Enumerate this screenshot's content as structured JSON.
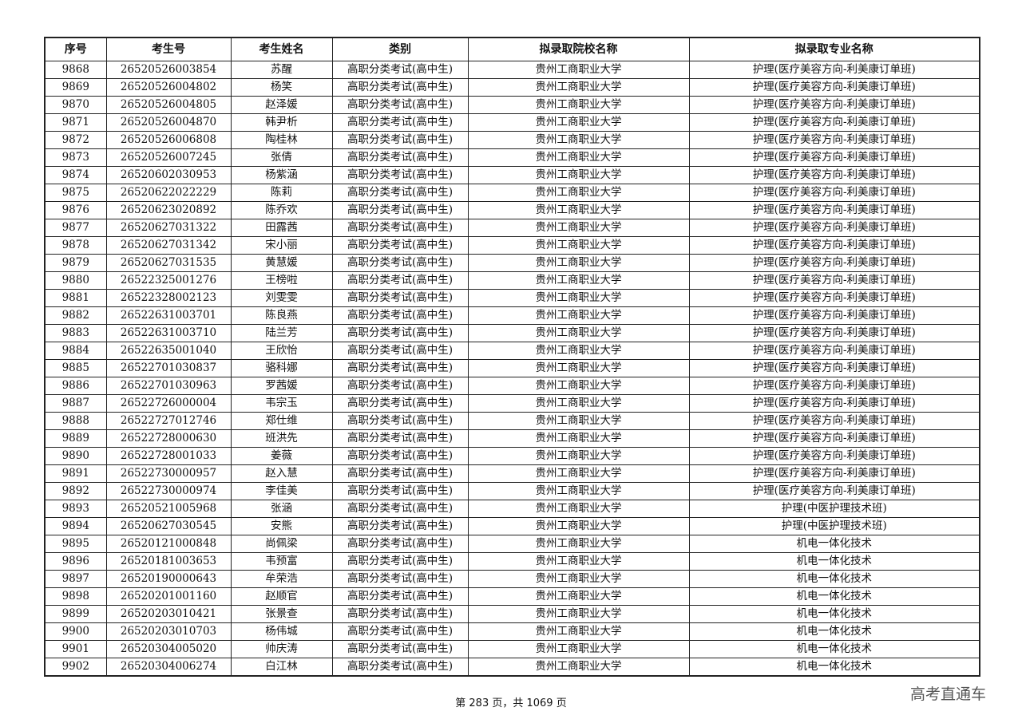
{
  "table": {
    "headers": [
      "序号",
      "考生号",
      "考生姓名",
      "类别",
      "拟录取院校名称",
      "拟录取专业名称"
    ],
    "rows": [
      [
        "9868",
        "26520526003854",
        "苏醒",
        "高职分类考试(高中生)",
        "贵州工商职业大学",
        "护理(医疗美容方向-利美康订单班)"
      ],
      [
        "9869",
        "26520526004802",
        "杨笑",
        "高职分类考试(高中生)",
        "贵州工商职业大学",
        "护理(医疗美容方向-利美康订单班)"
      ],
      [
        "9870",
        "26520526004805",
        "赵泽媛",
        "高职分类考试(高中生)",
        "贵州工商职业大学",
        "护理(医疗美容方向-利美康订单班)"
      ],
      [
        "9871",
        "26520526004870",
        "韩尹析",
        "高职分类考试(高中生)",
        "贵州工商职业大学",
        "护理(医疗美容方向-利美康订单班)"
      ],
      [
        "9872",
        "26520526006808",
        "陶桂林",
        "高职分类考试(高中生)",
        "贵州工商职业大学",
        "护理(医疗美容方向-利美康订单班)"
      ],
      [
        "9873",
        "26520526007245",
        "张倩",
        "高职分类考试(高中生)",
        "贵州工商职业大学",
        "护理(医疗美容方向-利美康订单班)"
      ],
      [
        "9874",
        "26520602030953",
        "杨紫涵",
        "高职分类考试(高中生)",
        "贵州工商职业大学",
        "护理(医疗美容方向-利美康订单班)"
      ],
      [
        "9875",
        "26520622022229",
        "陈莉",
        "高职分类考试(高中生)",
        "贵州工商职业大学",
        "护理(医疗美容方向-利美康订单班)"
      ],
      [
        "9876",
        "26520623020892",
        "陈乔欢",
        "高职分类考试(高中生)",
        "贵州工商职业大学",
        "护理(医疗美容方向-利美康订单班)"
      ],
      [
        "9877",
        "26520627031322",
        "田露茜",
        "高职分类考试(高中生)",
        "贵州工商职业大学",
        "护理(医疗美容方向-利美康订单班)"
      ],
      [
        "9878",
        "26520627031342",
        "宋小丽",
        "高职分类考试(高中生)",
        "贵州工商职业大学",
        "护理(医疗美容方向-利美康订单班)"
      ],
      [
        "9879",
        "26520627031535",
        "黄慧媛",
        "高职分类考试(高中生)",
        "贵州工商职业大学",
        "护理(医疗美容方向-利美康订单班)"
      ],
      [
        "9880",
        "26522325001276",
        "王榜啦",
        "高职分类考试(高中生)",
        "贵州工商职业大学",
        "护理(医疗美容方向-利美康订单班)"
      ],
      [
        "9881",
        "26522328002123",
        "刘雯雯",
        "高职分类考试(高中生)",
        "贵州工商职业大学",
        "护理(医疗美容方向-利美康订单班)"
      ],
      [
        "9882",
        "26522631003701",
        "陈良燕",
        "高职分类考试(高中生)",
        "贵州工商职业大学",
        "护理(医疗美容方向-利美康订单班)"
      ],
      [
        "9883",
        "26522631003710",
        "陆兰芳",
        "高职分类考试(高中生)",
        "贵州工商职业大学",
        "护理(医疗美容方向-利美康订单班)"
      ],
      [
        "9884",
        "26522635001040",
        "王欣怡",
        "高职分类考试(高中生)",
        "贵州工商职业大学",
        "护理(医疗美容方向-利美康订单班)"
      ],
      [
        "9885",
        "26522701030837",
        "骆科娜",
        "高职分类考试(高中生)",
        "贵州工商职业大学",
        "护理(医疗美容方向-利美康订单班)"
      ],
      [
        "9886",
        "26522701030963",
        "罗茜媛",
        "高职分类考试(高中生)",
        "贵州工商职业大学",
        "护理(医疗美容方向-利美康订单班)"
      ],
      [
        "9887",
        "26522726000004",
        "韦宗玉",
        "高职分类考试(高中生)",
        "贵州工商职业大学",
        "护理(医疗美容方向-利美康订单班)"
      ],
      [
        "9888",
        "26522727012746",
        "郑仕维",
        "高职分类考试(高中生)",
        "贵州工商职业大学",
        "护理(医疗美容方向-利美康订单班)"
      ],
      [
        "9889",
        "26522728000630",
        "班洪先",
        "高职分类考试(高中生)",
        "贵州工商职业大学",
        "护理(医疗美容方向-利美康订单班)"
      ],
      [
        "9890",
        "26522728001033",
        "姜薇",
        "高职分类考试(高中生)",
        "贵州工商职业大学",
        "护理(医疗美容方向-利美康订单班)"
      ],
      [
        "9891",
        "26522730000957",
        "赵入慧",
        "高职分类考试(高中生)",
        "贵州工商职业大学",
        "护理(医疗美容方向-利美康订单班)"
      ],
      [
        "9892",
        "26522730000974",
        "李佳美",
        "高职分类考试(高中生)",
        "贵州工商职业大学",
        "护理(医疗美容方向-利美康订单班)"
      ],
      [
        "9893",
        "26520521005968",
        "张涵",
        "高职分类考试(高中生)",
        "贵州工商职业大学",
        "护理(中医护理技术班)"
      ],
      [
        "9894",
        "26520627030545",
        "安熊",
        "高职分类考试(高中生)",
        "贵州工商职业大学",
        "护理(中医护理技术班)"
      ],
      [
        "9895",
        "26520121000848",
        "尚佩梁",
        "高职分类考试(高中生)",
        "贵州工商职业大学",
        "机电一体化技术"
      ],
      [
        "9896",
        "26520181003653",
        "韦预富",
        "高职分类考试(高中生)",
        "贵州工商职业大学",
        "机电一体化技术"
      ],
      [
        "9897",
        "26520190000643",
        "牟荣浩",
        "高职分类考试(高中生)",
        "贵州工商职业大学",
        "机电一体化技术"
      ],
      [
        "9898",
        "26520201001160",
        "赵顺官",
        "高职分类考试(高中生)",
        "贵州工商职业大学",
        "机电一体化技术"
      ],
      [
        "9899",
        "26520203010421",
        "张景查",
        "高职分类考试(高中生)",
        "贵州工商职业大学",
        "机电一体化技术"
      ],
      [
        "9900",
        "26520203010703",
        "杨伟城",
        "高职分类考试(高中生)",
        "贵州工商职业大学",
        "机电一体化技术"
      ],
      [
        "9901",
        "26520304005020",
        "帅庆涛",
        "高职分类考试(高中生)",
        "贵州工商职业大学",
        "机电一体化技术"
      ],
      [
        "9902",
        "26520304006274",
        "白江林",
        "高职分类考试(高中生)",
        "贵州工商职业大学",
        "机电一体化技术"
      ]
    ]
  },
  "footer": {
    "page_text": "第 283 页，共 1069 页"
  },
  "watermark": {
    "text": "高考直通车"
  }
}
